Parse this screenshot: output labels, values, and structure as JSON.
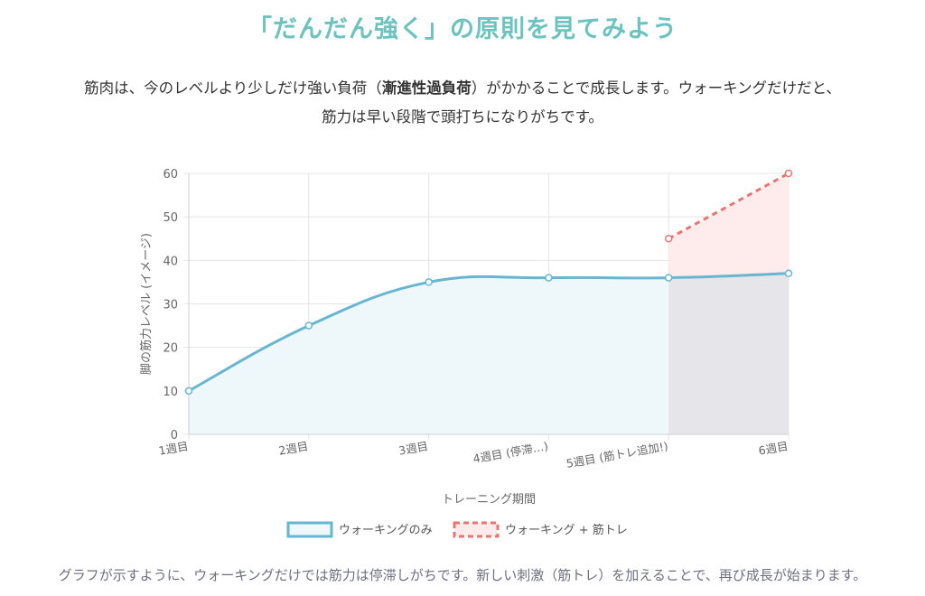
{
  "header": {
    "title": "「だんだん強く」の原則を見てみよう"
  },
  "intro": {
    "part1": "筋肉は、今のレベルより少しだけ強い負荷（",
    "bold": "漸進性過負荷",
    "part2": "）がかかることで成長します。ウォーキングだけだと、筋力は早い段階で頭打ちになりがちです。"
  },
  "footer": {
    "caption": "グラフが示すように、ウォーキングだけでは筋力は停滞しがちです。新しい刺激（筋トレ）を加えることで、再び成長が始まります。"
  },
  "colors": {
    "title": "#6cc3bf",
    "walking_line": "#67b6d1",
    "walking_fill": "#eef7fa",
    "strength_line": "#e8756f",
    "strength_fill": "#fdeceb",
    "overlap_fill": "#e6e5e9",
    "grid": "#e4e4e4"
  },
  "chart_data": {
    "type": "line",
    "xlabel": "トレーニング期間",
    "ylabel": "脚の筋力レベル (イメージ)",
    "categories": [
      "1週目",
      "2週目",
      "3週目",
      "4週目 (停滞…)",
      "5週目 (筋トレ追加!)",
      "6週目"
    ],
    "ylim": [
      0,
      60
    ],
    "yticks": [
      0,
      10,
      20,
      30,
      40,
      50,
      60
    ],
    "grid": true,
    "legend_position": "bottom",
    "series": [
      {
        "name": "ウォーキングのみ",
        "values": [
          10,
          25,
          35,
          36,
          36,
          37
        ],
        "style": "solid",
        "fill": true
      },
      {
        "name": "ウォーキング + 筋トレ",
        "values": [
          null,
          null,
          null,
          null,
          45,
          60
        ],
        "style": "dashed",
        "fill": true
      }
    ]
  }
}
